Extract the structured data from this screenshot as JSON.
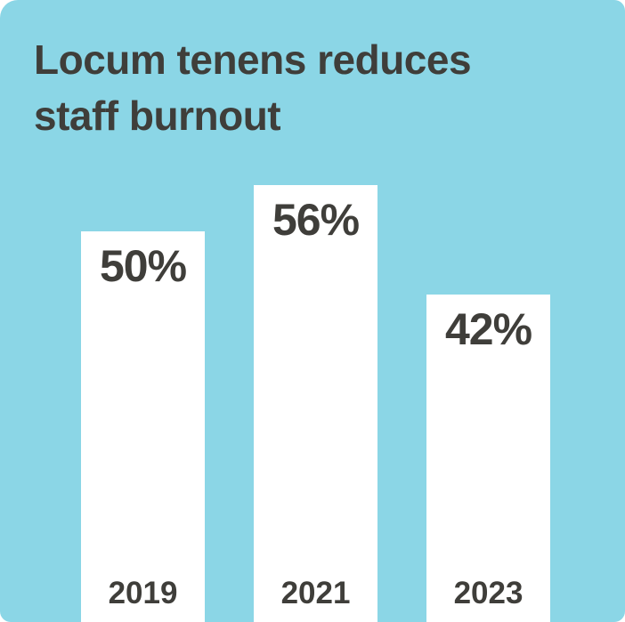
{
  "chart_data": {
    "type": "bar",
    "title": "Locum tenens reduces staff burnout",
    "title_lines": [
      "Locum tenens reduces",
      "staff burnout"
    ],
    "categories": [
      "2019",
      "2021",
      "2023"
    ],
    "values": [
      50,
      56,
      42
    ],
    "value_labels": [
      "50%",
      "56%",
      "42%"
    ],
    "unit": "%",
    "ylim": [
      0,
      56
    ],
    "grid": false,
    "legend": false,
    "orientation": "vertical",
    "colors": {
      "background": "#8bd6e6",
      "bar": "#ffffff",
      "text": "#3f3e3a"
    }
  }
}
